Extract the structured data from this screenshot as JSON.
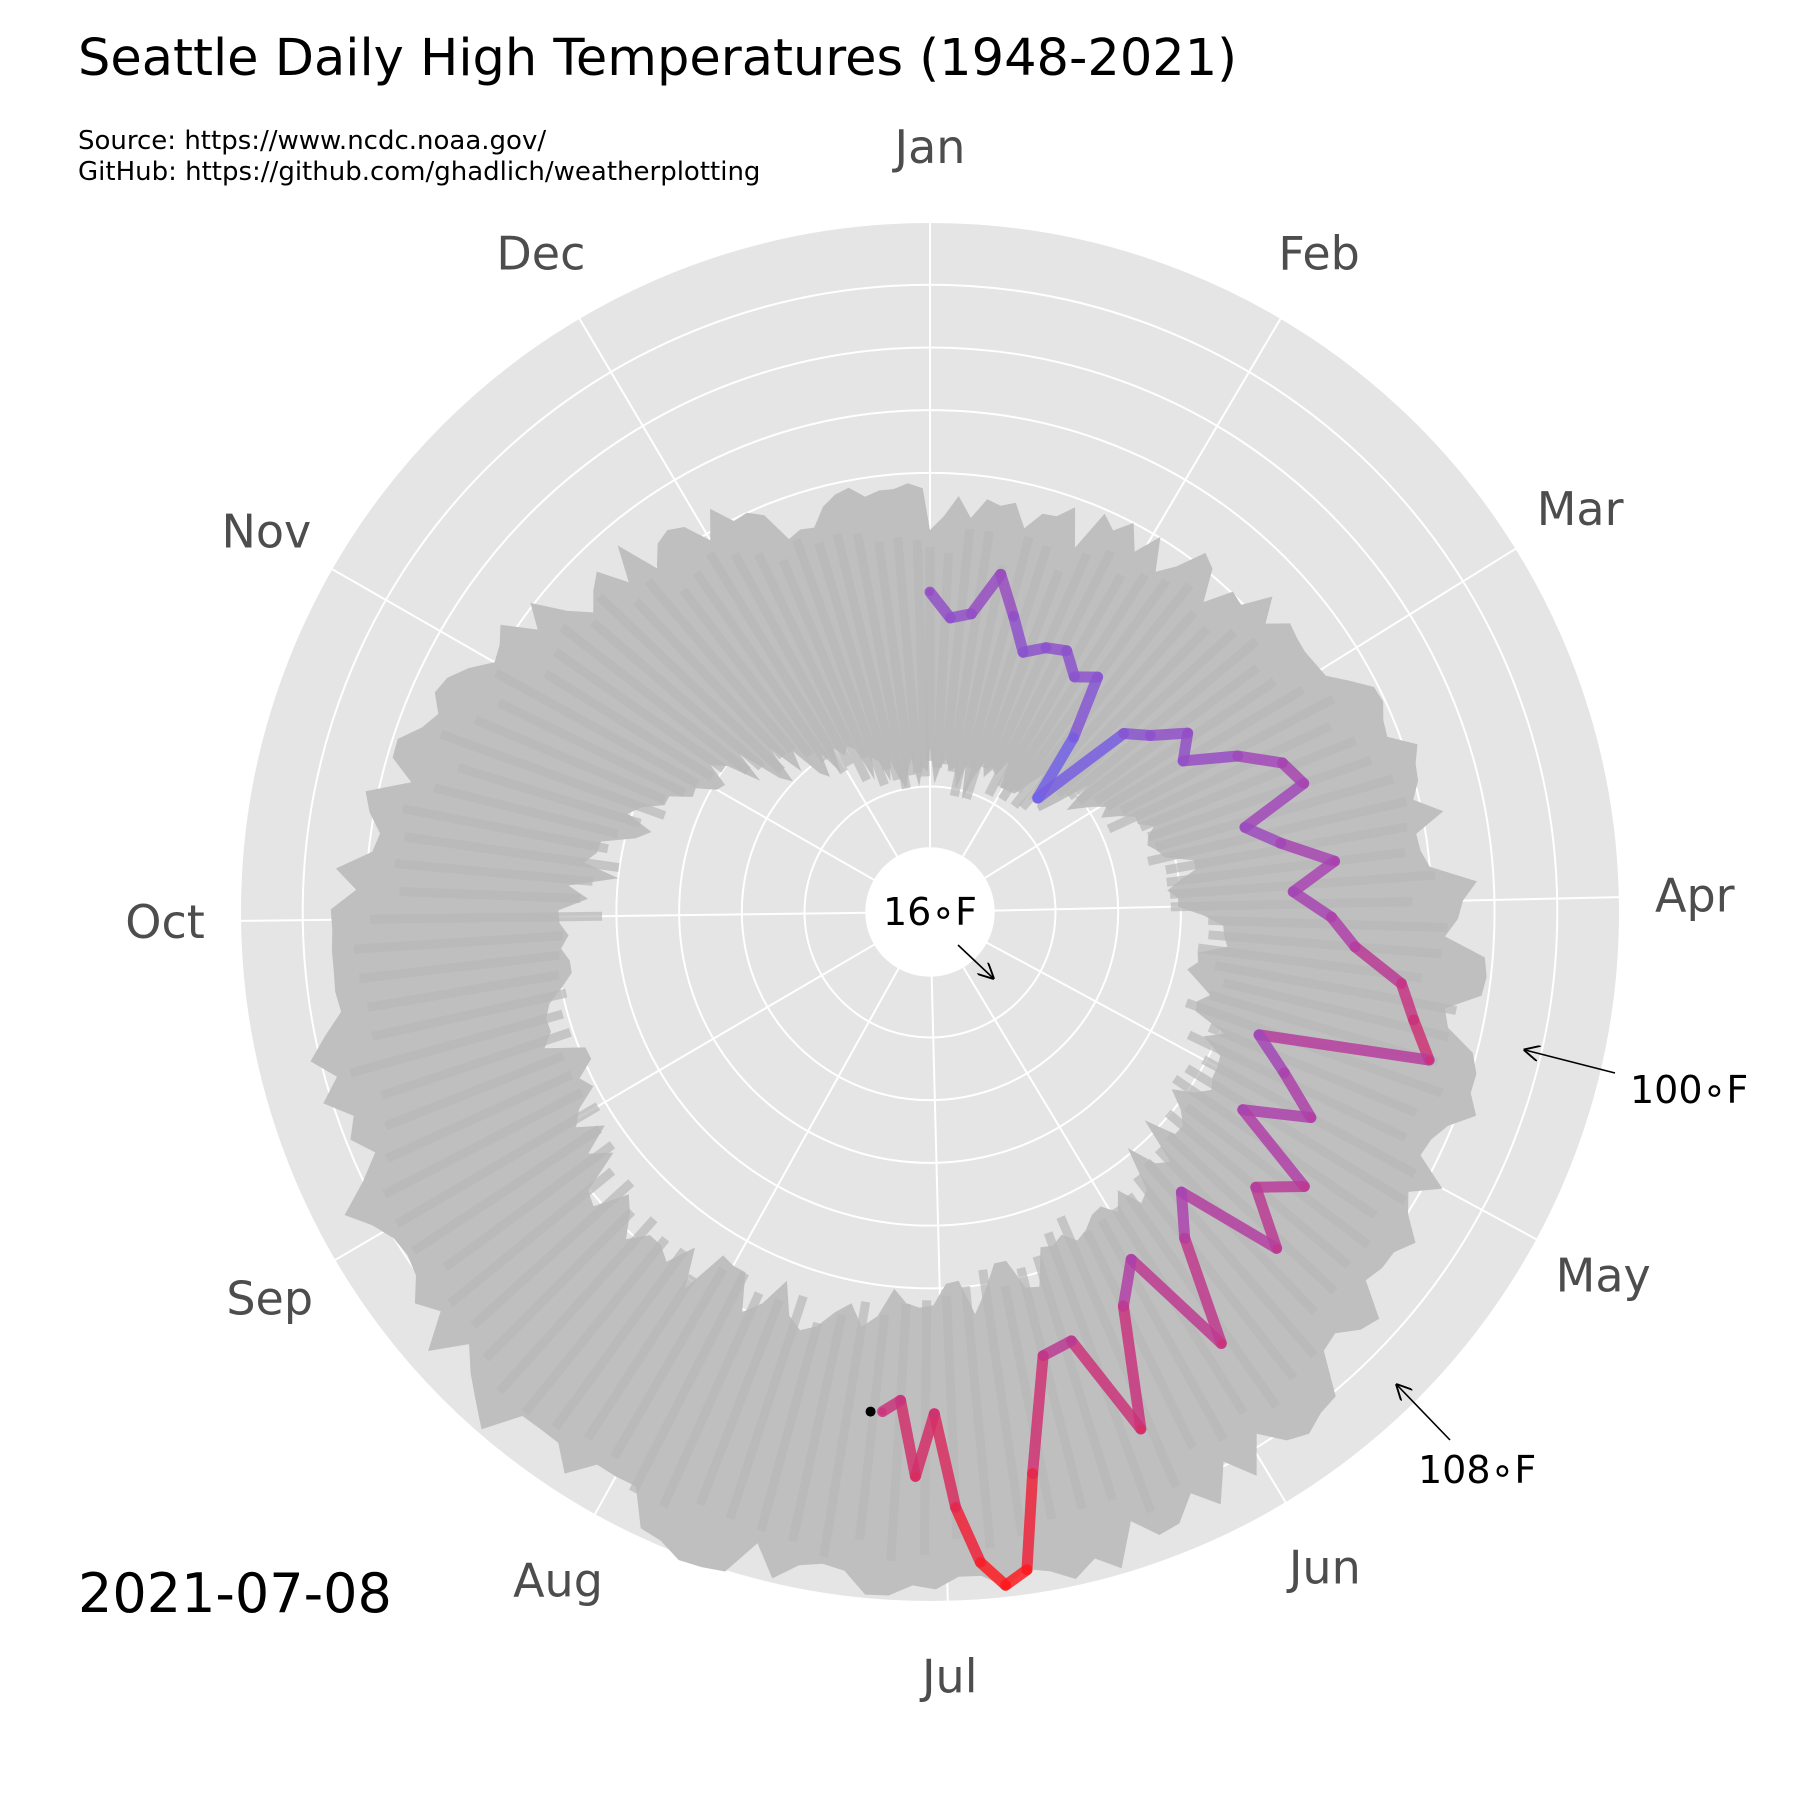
{
  "header": {
    "title": "Seattle Daily High Temperatures (1948-2021)",
    "source_line": "Source: https://www.ncdc.noaa.gov/",
    "github_line": "GitHub: https://github.com/ghadlich/weatherplotting"
  },
  "current_date": "2021-07-08",
  "chart_data": {
    "type": "line",
    "projection": "polar",
    "theta_direction": "clockwise",
    "theta_zero": "top",
    "categories": [
      "Jan",
      "Feb",
      "Mar",
      "Apr",
      "May",
      "Jun",
      "Jul",
      "Aug",
      "Sep",
      "Oct",
      "Nov",
      "Dec"
    ],
    "radial_range": [
      0,
      110
    ],
    "radial_gridlines": [
      10,
      20,
      30,
      40,
      50,
      60,
      70,
      80,
      90,
      100,
      110
    ],
    "grid": true,
    "hole_radius": 10,
    "annotations": [
      {
        "text": "16∘F",
        "value": 16,
        "day": 27
      },
      {
        "text": "100∘F",
        "value": 100,
        "day": 112
      },
      {
        "text": "108∘F",
        "value": 108,
        "day": 142
      }
    ],
    "colors": {
      "background": "#e5e5e5",
      "grid": "#ffffff",
      "history": "#bfbfbf",
      "cold": "#3030f0",
      "hot": "#ff1a1a",
      "current_marker": "#000000"
    },
    "history_envelope": {
      "months": [
        "Jan",
        "Feb",
        "Mar",
        "Apr",
        "May",
        "Jun",
        "Jul",
        "Aug",
        "Sep",
        "Oct",
        "Nov",
        "Dec"
      ],
      "min_high": [
        16,
        20,
        32,
        40,
        45,
        52,
        60,
        63,
        55,
        45,
        28,
        18
      ],
      "max_high": [
        64,
        70,
        79,
        88,
        95,
        105,
        108,
        105,
        99,
        88,
        75,
        66
      ]
    },
    "series": [
      {
        "name": "2021",
        "x": [
          1,
          5,
          9,
          13,
          17,
          21,
          25,
          29,
          33,
          37,
          41,
          45,
          49,
          53,
          57,
          61,
          65,
          69,
          73,
          77,
          81,
          85,
          89,
          93,
          97,
          101,
          105,
          109,
          113,
          117,
          121,
          125,
          129,
          133,
          137,
          141,
          145,
          149,
          153,
          157,
          161,
          165,
          169,
          173,
          175,
          177,
          179,
          181,
          183,
          185,
          187,
          189
        ],
        "values": [
          51,
          47,
          48,
          55,
          49,
          44,
          46,
          47,
          44,
          46,
          36,
          25,
          42,
          45,
          50,
          47,
          55,
          61,
          63,
          52,
          57,
          65,
          58,
          64,
          68,
          76,
          79,
          83,
          56,
          62,
          69,
          59,
          74,
          68,
          77,
          60,
          66,
          83,
          64,
          70,
          89,
          72,
          73,
          91,
          106,
          108,
          104,
          95,
          80,
          90,
          78,
          80
        ]
      }
    ]
  }
}
